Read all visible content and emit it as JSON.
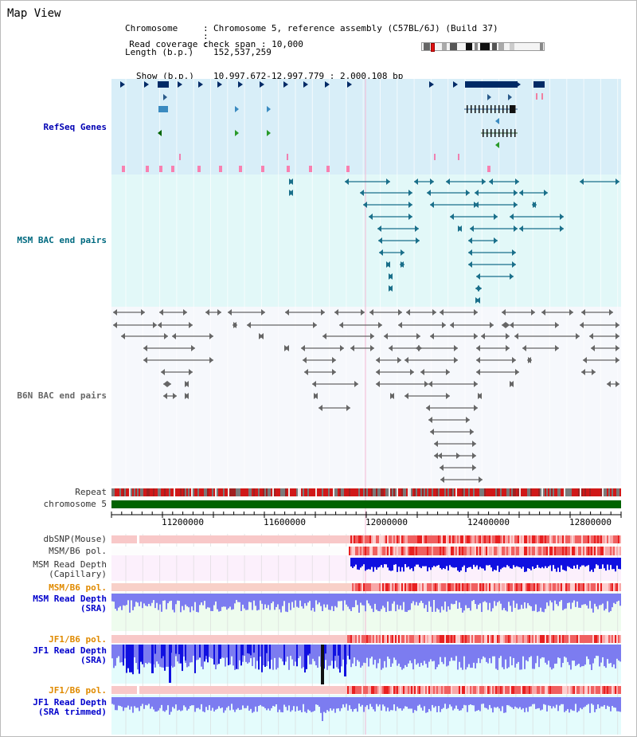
{
  "title": "Map View",
  "info": {
    "chromosome_label": "Chromosome",
    "chromosome_value": "Chromosome 5, reference assembly (C57BL/6J) (Build 37)",
    "length_label": "Length (b.p.)",
    "length_value": "152,537,259",
    "show_label": "Show (b.p.)",
    "show_value": "10,997,672-12,997,779 : 2,000,108 bp",
    "coverage_label": "Read coverage check span",
    "coverage_value": "10,000"
  },
  "tracks": {
    "refseq": "RefSeq Genes",
    "msm_bac": "MSM BAC end pairs",
    "b6n_bac": "B6N BAC end pairs",
    "repeat": "Repeat",
    "chromosome": "chromosome 5",
    "dbsnp": "dbSNP(Mouse)",
    "msm_b6_pol_1": "MSM/B6 pol.",
    "msm_depth_cap_1": "MSM Read Depth",
    "msm_depth_cap_2": "(Capillary)",
    "msm_b6_pol_2": "MSM/B6 pol.",
    "msm_depth_sra_1": "MSM Read Depth",
    "msm_depth_sra_2": "(SRA)",
    "jf1_b6_pol_1": "JF1/B6 pol.",
    "jf1_depth_sra_1": "JF1 Read Depth",
    "jf1_depth_sra_2": "(SRA)",
    "jf1_b6_pol_2": "JF1/B6 pol.",
    "jf1_depth_trim_1": "JF1 Read Depth",
    "jf1_depth_trim_2": "(SRA trimmed)"
  },
  "axis_ticks": [
    "11200000",
    "11600000",
    "12000000",
    "12400000",
    "12800000"
  ],
  "colors": {
    "refseq_bg": "#d8eef8",
    "msm_bg": "#e2f8f8",
    "b6n_bg": "#f6f8fc",
    "chromosome": "#006400",
    "refseq_feature": "#002a66",
    "msm_feature": "#1a6f8a",
    "b6n_feature": "#666666",
    "depth_dark": "#1010e0",
    "depth_light": "#7c7cf0",
    "pol_low": "#f8c8c8",
    "pol_high": "#e81010"
  }
}
